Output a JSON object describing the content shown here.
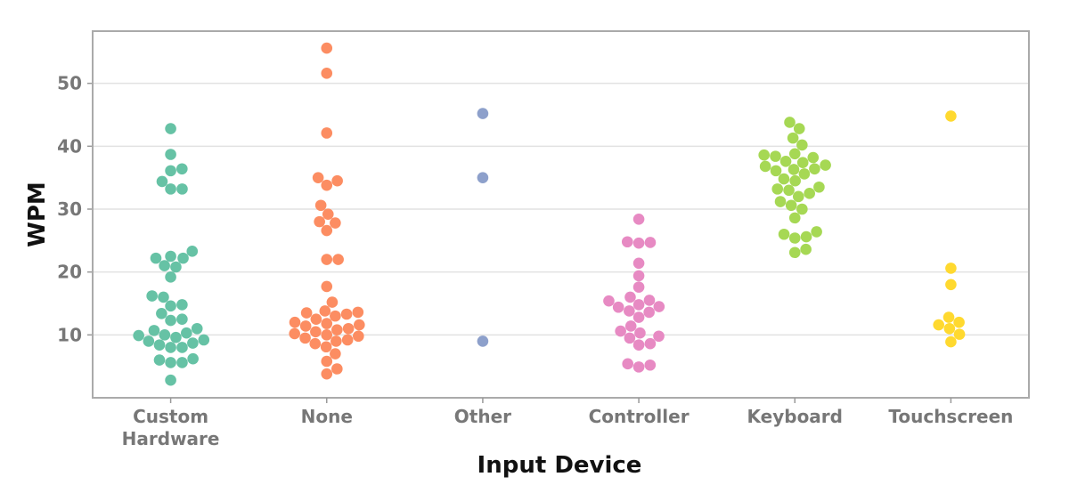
{
  "chart_data": {
    "type": "swarm",
    "xlabel": "Input Device",
    "ylabel": "WPM",
    "categories": [
      "Custom Hardware",
      "None",
      "Other",
      "Controller",
      "Keyboard",
      "Touchscreen"
    ],
    "colors": [
      "#66c2a5",
      "#fc8d62",
      "#8da0cb",
      "#e78ac3",
      "#a6d854",
      "#ffd92f"
    ],
    "values": [
      [
        42.8,
        38.7,
        36.4,
        36.1,
        34.4,
        33.2,
        33.2,
        23.3,
        22.5,
        22.2,
        22.2,
        21.0,
        20.8,
        19.2,
        16.2,
        16.0,
        14.8,
        14.6,
        13.4,
        12.5,
        12.3,
        11.0,
        10.7,
        10.3,
        10.0,
        9.9,
        9.6,
        9.2,
        9.0,
        8.7,
        8.4,
        8.0,
        8.0,
        6.2,
        6.0,
        5.6,
        5.6,
        2.8
      ],
      [
        55.6,
        51.6,
        42.1,
        35.0,
        34.5,
        33.8,
        30.6,
        29.2,
        28.0,
        27.8,
        26.6,
        22.0,
        22.0,
        17.7,
        15.2,
        13.8,
        13.6,
        13.5,
        13.3,
        13.0,
        12.5,
        12.0,
        11.8,
        11.6,
        11.4,
        11.0,
        10.8,
        10.5,
        10.2,
        10.0,
        9.8,
        9.5,
        9.2,
        9.0,
        8.6,
        8.1,
        7.0,
        5.8,
        4.6,
        3.8
      ],
      [
        45.2,
        35.0,
        9.0
      ],
      [
        28.4,
        24.8,
        24.7,
        24.6,
        21.4,
        19.4,
        17.6,
        16.0,
        15.5,
        15.4,
        14.8,
        14.5,
        14.4,
        13.8,
        13.6,
        12.8,
        11.4,
        10.6,
        10.3,
        9.8,
        9.5,
        8.6,
        8.4,
        5.4,
        5.2,
        4.9
      ],
      [
        43.8,
        42.8,
        41.3,
        40.2,
        38.8,
        38.6,
        38.4,
        38.2,
        37.6,
        37.4,
        37.0,
        36.8,
        36.4,
        36.3,
        36.1,
        35.6,
        34.8,
        34.5,
        33.5,
        33.2,
        33.0,
        32.5,
        32.0,
        31.2,
        30.6,
        30.0,
        28.6,
        26.4,
        26.0,
        25.6,
        25.4,
        23.6,
        23.1
      ],
      [
        44.8,
        20.6,
        18.0,
        12.8,
        12.0,
        11.6,
        11.0,
        10.1,
        8.9
      ]
    ],
    "ylim": [
      0,
      58.3
    ],
    "yticks": [
      10,
      20,
      30,
      40,
      50
    ],
    "grid": true
  }
}
